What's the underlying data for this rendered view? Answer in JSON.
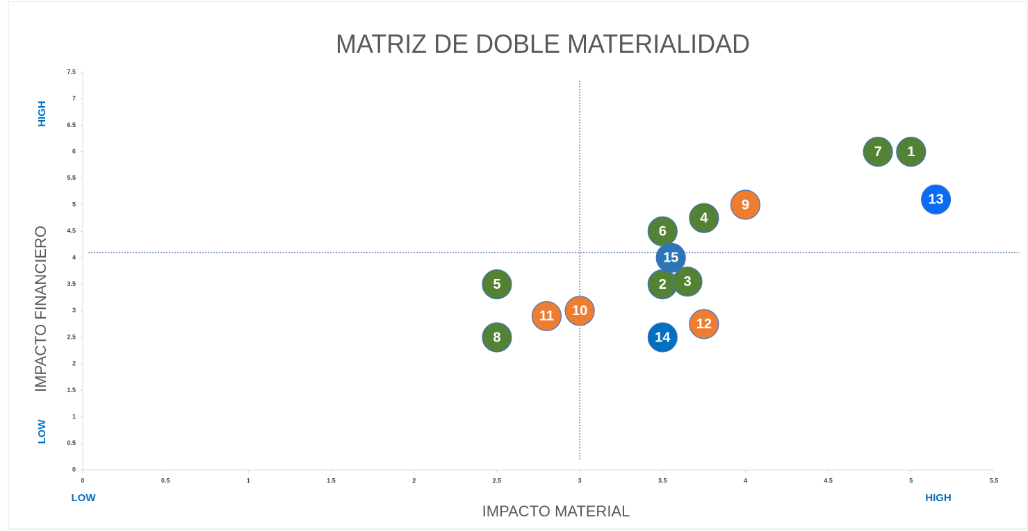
{
  "chart_data": {
    "type": "scatter",
    "title": "MATRIZ DE DOBLE MATERIALIDAD",
    "x_label": "IMPACTO MATERIAL",
    "y_label": "IMPACTO FINANCIERO",
    "x_low": "LOW",
    "x_high": "HIGH",
    "y_low": "LOW",
    "y_high": "HIGH",
    "xlim": [
      0,
      5.5
    ],
    "ylim": [
      0,
      7.5
    ],
    "xticks": [
      0,
      0.5,
      1,
      1.5,
      2,
      2.5,
      3,
      3.5,
      4,
      4.5,
      5,
      5.5
    ],
    "yticks": [
      0,
      0.5,
      1,
      1.5,
      2,
      2.5,
      3,
      3.5,
      4,
      4.5,
      5,
      5.5,
      6,
      6.5,
      7,
      7.5
    ],
    "reference_lines": {
      "x": 3,
      "y": 4.1
    },
    "points": [
      {
        "label": "1",
        "x": 5,
        "y": 6,
        "color": "#548235"
      },
      {
        "label": "2",
        "x": 3.5,
        "y": 3.5,
        "color": "#548235"
      },
      {
        "label": "3",
        "x": 3.65,
        "y": 3.55,
        "color": "#548235"
      },
      {
        "label": "4",
        "x": 3.75,
        "y": 4.75,
        "color": "#548235"
      },
      {
        "label": "5",
        "x": 2.5,
        "y": 3.5,
        "color": "#548235"
      },
      {
        "label": "6",
        "x": 3.5,
        "y": 4.5,
        "color": "#548235"
      },
      {
        "label": "7",
        "x": 4.8,
        "y": 6,
        "color": "#548235"
      },
      {
        "label": "8",
        "x": 2.5,
        "y": 2.5,
        "color": "#548235"
      },
      {
        "label": "9",
        "x": 4,
        "y": 5,
        "color": "#ed7d31"
      },
      {
        "label": "10",
        "x": 3,
        "y": 3,
        "color": "#ed7d31"
      },
      {
        "label": "11",
        "x": 2.8,
        "y": 2.9,
        "color": "#ed7d31"
      },
      {
        "label": "12",
        "x": 3.75,
        "y": 2.75,
        "color": "#ed7d31"
      },
      {
        "label": "13",
        "x": 5.15,
        "y": 5.1,
        "color": "#0a6cf2"
      },
      {
        "label": "14",
        "x": 3.5,
        "y": 2.5,
        "color": "#0070c0"
      },
      {
        "label": "15",
        "x": 3.55,
        "y": 4,
        "color": "#2e75b6"
      }
    ]
  }
}
